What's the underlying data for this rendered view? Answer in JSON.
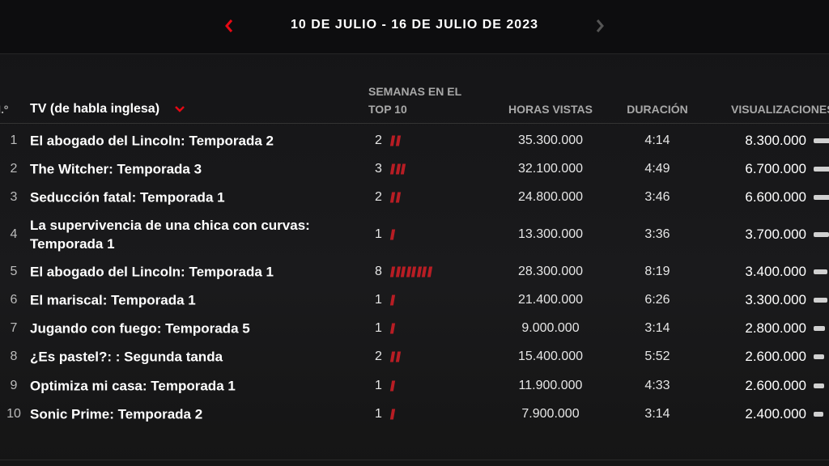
{
  "header": {
    "date_range": "10 DE JULIO - 16 DE JULIO DE 2023"
  },
  "table": {
    "columns": {
      "rank": "N.º",
      "title": "TV (de habla inglesa)",
      "weeks": [
        "SEMANAS EN EL",
        "TOP 10"
      ],
      "hours": "HORAS VISTAS",
      "duration": "DURACIÓN",
      "views": "VISUALIZACIONES"
    },
    "rows": [
      {
        "rank": 1,
        "title": "El abogado del Lincoln: Temporada 2",
        "weeks": 2,
        "hours": "35.300.000",
        "duration": "4:14",
        "views": "8.300.000"
      },
      {
        "rank": 2,
        "title": "The Witcher: Temporada 3",
        "weeks": 3,
        "hours": "32.100.000",
        "duration": "4:49",
        "views": "6.700.000"
      },
      {
        "rank": 3,
        "title": "Seducción fatal: Temporada 1",
        "weeks": 2,
        "hours": "24.800.000",
        "duration": "3:46",
        "views": "6.600.000"
      },
      {
        "rank": 4,
        "title": "La supervivencia de una chica con curvas: Temporada 1",
        "weeks": 1,
        "hours": "13.300.000",
        "duration": "3:36",
        "views": "3.700.000"
      },
      {
        "rank": 5,
        "title": "El abogado del Lincoln: Temporada 1",
        "weeks": 8,
        "hours": "28.300.000",
        "duration": "8:19",
        "views": "3.400.000"
      },
      {
        "rank": 6,
        "title": "El mariscal: Temporada 1",
        "weeks": 1,
        "hours": "21.400.000",
        "duration": "6:26",
        "views": "3.300.000"
      },
      {
        "rank": 7,
        "title": "Jugando con fuego: Temporada 5",
        "weeks": 1,
        "hours": "9.000.000",
        "duration": "3:14",
        "views": "2.800.000"
      },
      {
        "rank": 8,
        "title": "¿Es pastel?: : Segunda tanda",
        "weeks": 2,
        "hours": "15.400.000",
        "duration": "5:52",
        "views": "2.600.000"
      },
      {
        "rank": 9,
        "title": "Optimiza mi casa: Temporada 1",
        "weeks": 1,
        "hours": "11.900.000",
        "duration": "4:33",
        "views": "2.600.000"
      },
      {
        "rank": 10,
        "title": "Sonic Prime: Temporada 2",
        "weeks": 1,
        "hours": "7.900.000",
        "duration": "3:14",
        "views": "2.400.000"
      }
    ]
  }
}
